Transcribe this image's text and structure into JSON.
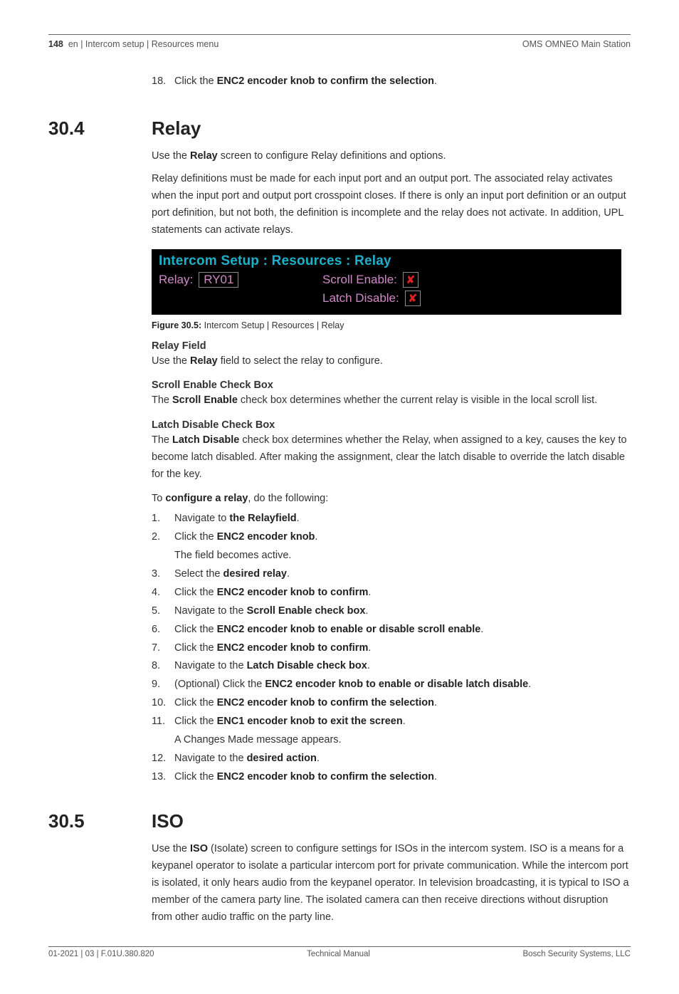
{
  "header": {
    "page_number": "148",
    "breadcrumb": "en | Intercom setup | Resources menu",
    "right": "OMS OMNEO Main Station"
  },
  "pre_item": {
    "num": "18.",
    "lead": "Click the ",
    "bold": "ENC2 encoder knob to confirm the selection",
    "tail": "."
  },
  "sec304": {
    "num": "30.4",
    "title": "Relay",
    "intro_lead": "Use the ",
    "intro_bold": "Relay",
    "intro_tail": " screen to configure Relay definitions and options.",
    "para2": "Relay definitions must be made for each input port and an output port. The associated relay activates when the input port and output port crosspoint closes. If there is only an input port definition or an output port definition, but not both, the definition is incomplete and the relay does not activate. In addition, UPL statements can activate relays.",
    "figure": {
      "title": "Intercom Setup : Resources : Relay",
      "relay_label": "Relay:",
      "relay_value": "RY01",
      "scroll_label": "Scroll Enable:",
      "latch_label": "Latch Disable:",
      "check_mark": "✘",
      "colors": {
        "bg": "#000000",
        "title": "#1db0c9",
        "label": "#cf89c6",
        "border": "#888888",
        "x": "#d22"
      }
    },
    "caption_lead": "Figure 30.5:",
    "caption_tail": " Intercom Setup | Resources | Relay",
    "relayfield_head": "Relay Field",
    "relayfield_lead": "Use the ",
    "relayfield_bold": "Relay",
    "relayfield_tail": " field to select the relay to configure.",
    "scroll_head": "Scroll Enable Check Box",
    "scroll_lead": "The ",
    "scroll_bold": "Scroll Enable",
    "scroll_tail": " check box determines whether the current relay is visible in the local scroll list.",
    "latch_head": "Latch Disable Check Box",
    "latch_lead": "The ",
    "latch_bold": "Latch Disable",
    "latch_tail": " check box determines whether the Relay, when assigned to a key, causes the key to become latch disabled. After making the assignment, clear the latch disable to override the latch disable for the key.",
    "configure_lead": "To ",
    "configure_bold": "configure a relay",
    "configure_tail": ", do the following:",
    "steps": [
      {
        "n": "1.",
        "lead": "Navigate to ",
        "bold": "the Relayfield",
        "tail": "."
      },
      {
        "n": "2.",
        "lead": "Click the ",
        "bold": "ENC2 encoder knob",
        "tail": ".",
        "sub": "The field becomes active."
      },
      {
        "n": "3.",
        "lead": "Select the ",
        "bold": "desired relay",
        "tail": "."
      },
      {
        "n": "4.",
        "lead": "Click the ",
        "bold": "ENC2 encoder knob to confirm",
        "tail": "."
      },
      {
        "n": "5.",
        "lead": "Navigate to the ",
        "bold": "Scroll Enable check box",
        "tail": "."
      },
      {
        "n": "6.",
        "lead": "Click the ",
        "bold": "ENC2 encoder knob to enable or disable scroll enable",
        "tail": "."
      },
      {
        "n": "7.",
        "lead": "Click the ",
        "bold": "ENC2 encoder knob to confirm",
        "tail": "."
      },
      {
        "n": "8.",
        "lead": "Navigate to the ",
        "bold": "Latch Disable check box",
        "tail": "."
      },
      {
        "n": "9.",
        "lead": "(Optional) Click the ",
        "bold": "ENC2 encoder knob to enable or disable latch disable",
        "tail": "."
      },
      {
        "n": "10.",
        "lead": "Click the ",
        "bold": "ENC2 encoder knob to confirm the selection",
        "tail": "."
      },
      {
        "n": "11.",
        "lead": "Click the ",
        "bold": "ENC1 encoder knob to exit the screen",
        "tail": ".",
        "sub": "A Changes Made message appears."
      },
      {
        "n": "12.",
        "lead": "Navigate to the ",
        "bold": "desired action",
        "tail": "."
      },
      {
        "n": "13.",
        "lead": "Click the ",
        "bold": "ENC2 encoder knob to confirm the selection",
        "tail": "."
      }
    ]
  },
  "sec305": {
    "num": "30.5",
    "title": "ISO",
    "lead": "Use the ",
    "bold": "ISO",
    "tail": " (Isolate) screen to configure settings for ISOs in the intercom system. ISO is a means for a keypanel operator to isolate a particular intercom port for private communication. While the intercom port is isolated, it only hears audio from the keypanel operator. In television broadcasting, it is typical to ISO a member of the camera party line. The isolated camera can then receive directions without disruption from other audio traffic on the party line."
  },
  "footer": {
    "left": "01-2021 | 03 | F.01U.380.820",
    "center": "Technical Manual",
    "right": "Bosch Security Systems, LLC"
  }
}
